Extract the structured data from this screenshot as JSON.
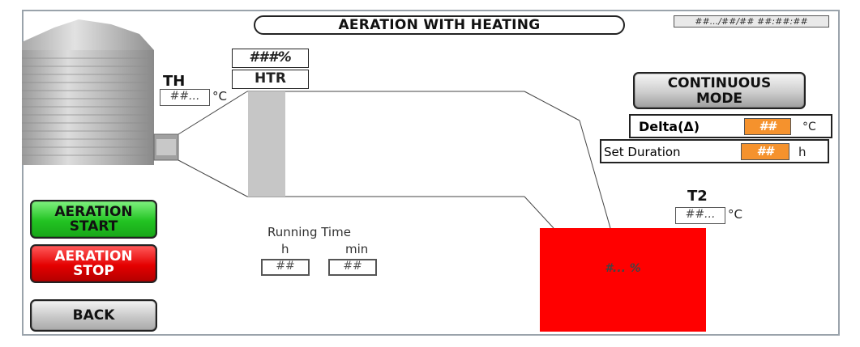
{
  "title": "AERATION WITH HEATING",
  "datetime": "##.../##/## ##:##:##",
  "heater": {
    "percent": "###%",
    "label": "HTR"
  },
  "th": {
    "label": "TH",
    "value": "##...",
    "unit": "°C"
  },
  "continuous_mode": {
    "label_line1": "CONTINUOUS",
    "label_line2": "MODE"
  },
  "delta": {
    "label": "Delta(Δ)",
    "value": "##",
    "unit": "°C"
  },
  "set_duration": {
    "label": "Set Duration",
    "value": "##",
    "unit": "h"
  },
  "t2": {
    "label": "T2",
    "value": "##...",
    "unit": "°C"
  },
  "running_time": {
    "label": "Running Time",
    "h_label": "h",
    "min_label": "min",
    "h_value": "##",
    "min_value": "##"
  },
  "tank": {
    "value": "#... %",
    "color": "#ff0000"
  },
  "buttons": {
    "start_line1": "AERATION",
    "start_line2": "START",
    "stop_line1": "AERATION",
    "stop_line2": "STOP",
    "back": "BACK"
  },
  "icons": {
    "silo": "silo-icon",
    "duct": "heater-duct-icon"
  }
}
